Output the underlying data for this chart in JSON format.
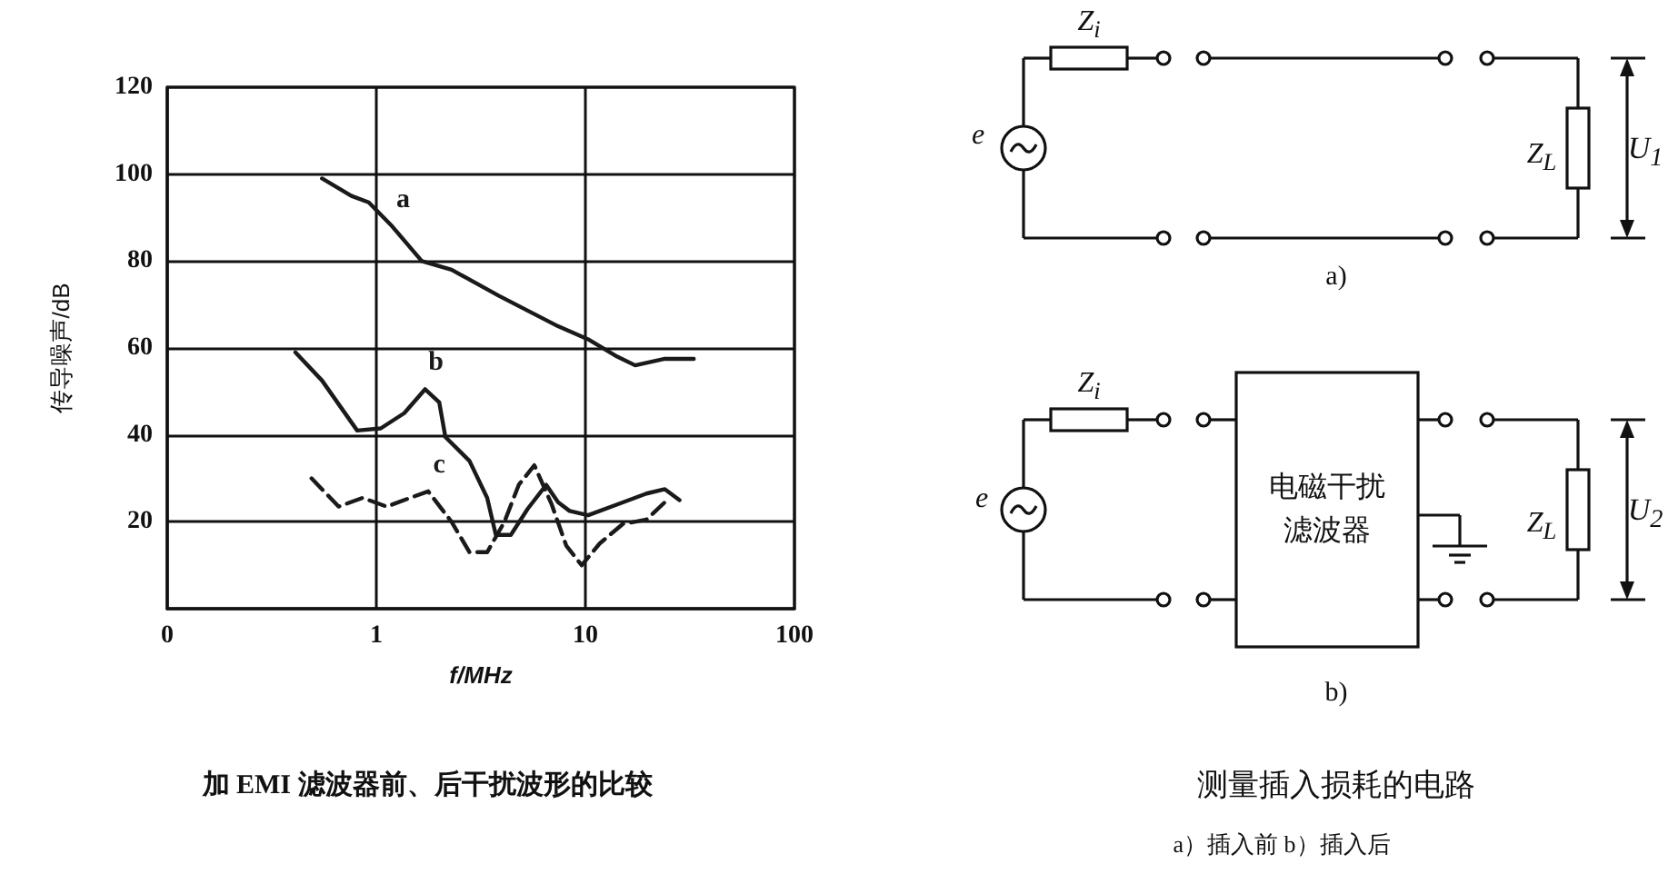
{
  "chart_data": [
    {
      "type": "line",
      "title": "加 EMI 滤波器前、后干扰波形的比较",
      "xlabel": "f/MHz",
      "ylabel": "传导噪声/dB",
      "log": "x",
      "grid": true,
      "marker": "none",
      "xlim": [
        0.1,
        100
      ],
      "xticks": [
        {
          "value": 0.1,
          "label": "0"
        },
        1,
        10,
        100
      ],
      "ylim": [
        0,
        120
      ],
      "yticks": [
        {
          "value": 0,
          "label": null
        },
        20,
        40,
        60,
        80,
        100,
        120
      ],
      "series": [
        {
          "name": "a",
          "color": "#1a1a1a",
          "line_style": "solid",
          "x": [
            0.55,
            0.76,
            0.92,
            1.19,
            1.65,
            2.29,
            3.86,
            7.4,
            10.3,
            14.2,
            17.3,
            24,
            33
          ],
          "values": [
            99,
            95,
            93.5,
            88,
            80,
            78,
            72,
            65,
            62,
            58,
            56,
            57.5,
            57.5
          ]
        },
        {
          "name": "b",
          "color": "#1a1a1a",
          "line_style": "solid",
          "x": [
            0.41,
            0.55,
            0.81,
            1.05,
            1.36,
            1.71,
            2.0,
            2.14,
            2.79,
            3.39,
            3.73,
            4.4,
            5.3,
            6.5,
            7.4,
            8.4,
            10.3,
            14.2,
            19.6,
            24,
            28.2
          ],
          "values": [
            59,
            52.5,
            41,
            41.5,
            45,
            50.5,
            47.5,
            39.5,
            34,
            25.5,
            17,
            17,
            23,
            28.5,
            24.5,
            22.5,
            21.5,
            24,
            26.5,
            27.5,
            25
          ]
        },
        {
          "name": "c",
          "color": "#1a1a1a",
          "line_style": "dashed",
          "x": [
            0.49,
            0.66,
            0.86,
            1.12,
            1.45,
            1.77,
            2.29,
            2.79,
            3.39,
            4.1,
            4.8,
            5.7,
            6.9,
            8.1,
            9.6,
            11.7,
            15.1,
            19.6,
            24.6
          ],
          "values": [
            30,
            23.5,
            25.5,
            23.5,
            25.5,
            27,
            20,
            13,
            13,
            20,
            28.5,
            33,
            24,
            14.5,
            10,
            15,
            19.5,
            20.5,
            25
          ]
        }
      ]
    },
    {
      "type": "other",
      "title": "测量插入损耗的电路",
      "subtitle": "a）插入前   b）插入后",
      "annotations": [
        "Z$_{i}$",
        "e",
        "Z$_{L}$",
        "U$_{1}$",
        "a)",
        "Z$_{i}$",
        "e",
        "电磁干扰滤波器",
        "Z$_{L}$",
        "U$_{2}$",
        "b)"
      ]
    }
  ]
}
